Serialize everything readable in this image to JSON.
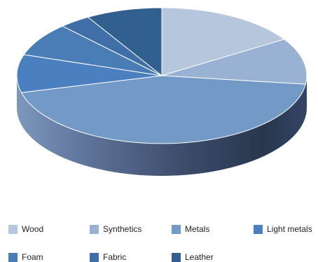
{
  "chart_data": {
    "type": "pie",
    "title": "",
    "categories": [
      "Wood",
      "Synthetics",
      "Metals",
      "Light metals",
      "Foam",
      "Fabric",
      "Leather"
    ],
    "values": [
      16,
      11,
      44,
      9,
      8,
      3.5,
      8.5
    ],
    "colors": [
      "#b6c6dc",
      "#99b1d3",
      "#7399c6",
      "#4a7fc0",
      "#4a7cb6",
      "#3f6fa6",
      "#315f90"
    ],
    "legend_position": "bottom",
    "style": "3d"
  }
}
